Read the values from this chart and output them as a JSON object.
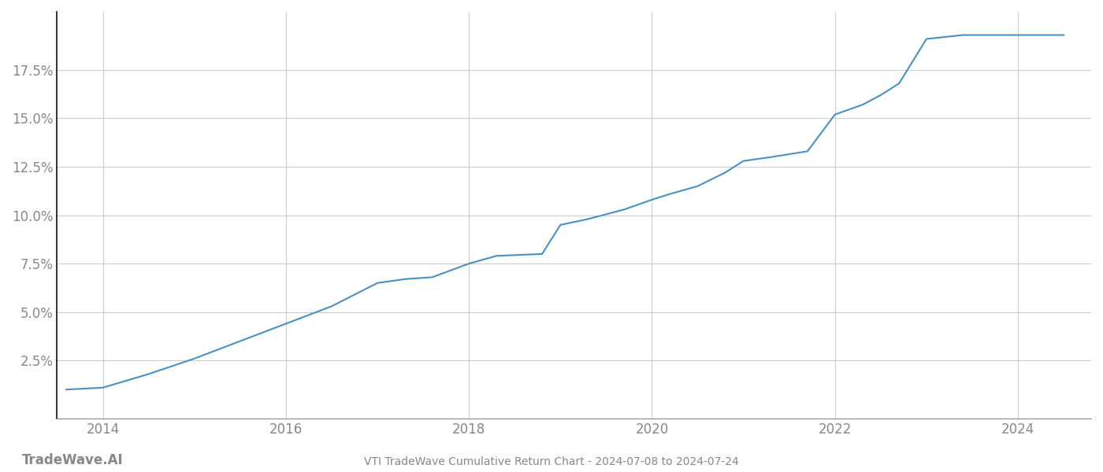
{
  "title": "VTI TradeWave Cumulative Return Chart - 2024-07-08 to 2024-07-24",
  "watermark_left": "TradeWave.AI",
  "line_color": "#4a90c4",
  "background_color": "#ffffff",
  "grid_color": "#cccccc",
  "x_years": [
    2013.6,
    2014.0,
    2014.5,
    2015.0,
    2015.5,
    2016.0,
    2016.5,
    2017.0,
    2017.3,
    2017.6,
    2018.0,
    2018.3,
    2018.8,
    2019.0,
    2019.3,
    2019.7,
    2020.0,
    2020.2,
    2020.5,
    2020.8,
    2021.0,
    2021.3,
    2021.7,
    2022.0,
    2022.3,
    2022.5,
    2022.7,
    2023.0,
    2023.2,
    2023.4,
    2023.6,
    2024.0,
    2024.5
  ],
  "y_values": [
    1.0,
    1.1,
    1.8,
    2.6,
    3.5,
    4.4,
    5.3,
    6.5,
    6.7,
    6.8,
    7.5,
    7.9,
    8.0,
    9.5,
    9.8,
    10.3,
    10.8,
    11.1,
    11.5,
    12.2,
    12.8,
    13.0,
    13.3,
    15.2,
    15.7,
    16.2,
    16.8,
    19.1,
    19.2,
    19.3,
    19.3,
    19.3,
    19.3
  ],
  "xlim": [
    2013.5,
    2024.8
  ],
  "ylim": [
    -0.5,
    20.5
  ],
  "yticks": [
    2.5,
    5.0,
    7.5,
    10.0,
    12.5,
    15.0,
    17.5
  ],
  "xticks": [
    2014,
    2016,
    2018,
    2020,
    2022,
    2024
  ],
  "tick_color": "#888888",
  "left_spine_color": "#111111",
  "bottom_spine_color": "#888888",
  "title_fontsize": 10,
  "tick_fontsize": 12,
  "watermark_fontsize": 12
}
